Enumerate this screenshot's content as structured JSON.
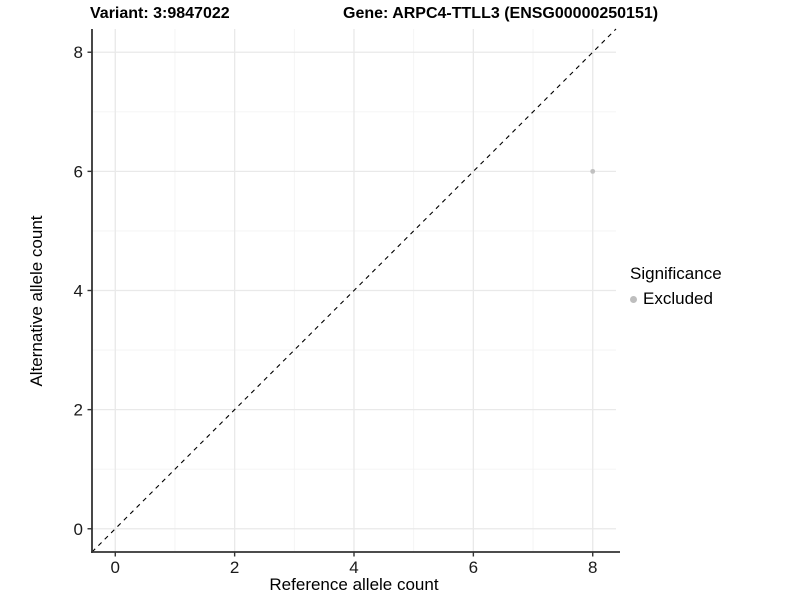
{
  "titles": {
    "variant": "Variant: 3:9847022",
    "gene": "Gene: ARPC4-TTLL3 (ENSG00000250151)"
  },
  "legend": {
    "title": "Significance",
    "items": [
      {
        "label": "Excluded",
        "color": "#bebebe"
      }
    ]
  },
  "chart_data": {
    "type": "scatter",
    "title": "",
    "xlabel": "Reference allele count",
    "ylabel": "Alternative allele count",
    "xlim": [
      -0.39,
      8.39
    ],
    "ylim": [
      -0.39,
      8.39
    ],
    "xticks": [
      0,
      2,
      4,
      6,
      8
    ],
    "yticks": [
      0,
      2,
      4,
      6,
      8
    ],
    "xminor": [
      1,
      3,
      5,
      7
    ],
    "yminor": [
      1,
      3,
      5,
      7
    ],
    "grid": true,
    "legend_position": "right",
    "points": [
      {
        "x": 8,
        "y": 6,
        "significance": "Excluded",
        "color": "#c0c0c0"
      }
    ],
    "reference_line": {
      "type": "identity",
      "slope": 1,
      "intercept": 0,
      "style": "dashed",
      "color": "#000000"
    },
    "colors": {
      "grid_major": "#e9e9e9",
      "grid_minor": "#f3f3f3",
      "axis_line": "#333333",
      "tick_text": "#1a1a1a"
    }
  }
}
